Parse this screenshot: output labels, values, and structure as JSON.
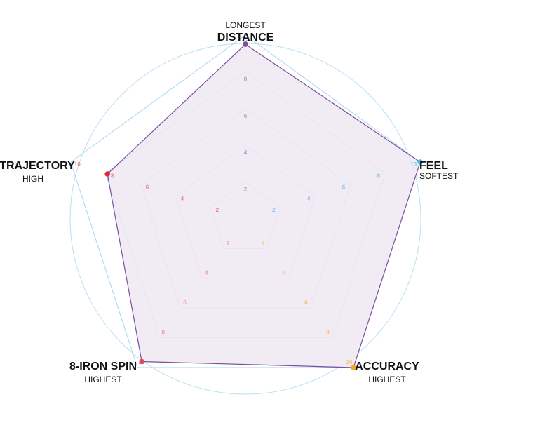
{
  "chart_data": {
    "type": "radar",
    "title": "",
    "scale": {
      "min": 0,
      "max": 10,
      "ticks": [
        2,
        4,
        6,
        8,
        10
      ]
    },
    "axes": [
      {
        "name": "DISTANCE",
        "qualifier": "LONGEST",
        "value": 9.5,
        "tick_color": "#b79ccf",
        "dot_color": "#7b4f9d"
      },
      {
        "name": "FEEL",
        "qualifier": "SOFTEST",
        "value": 10,
        "tick_color": "#7ec3e8",
        "dot_color": "#3ec1e6"
      },
      {
        "name": "ACCURACY",
        "qualifier": "HIGHEST",
        "value": 10,
        "tick_color": "#f5c27a",
        "dot_color": "#f5a623"
      },
      {
        "name": "8-IRON SPIN",
        "qualifier": "HIGHEST",
        "value": 9.6,
        "tick_color": "#f0a0a8",
        "dot_color": "#e84560"
      },
      {
        "name": "TRAJECTORY",
        "qualifier": "HIGH",
        "value": 7.9,
        "tick_color": "#f07c84",
        "dot_color": "#e8233c"
      }
    ],
    "colors": {
      "grid": "#a9d6ef",
      "outer_circle": "#b9e0f2",
      "fill": "#efe7f2",
      "stroke": "#7b4f9d"
    }
  }
}
